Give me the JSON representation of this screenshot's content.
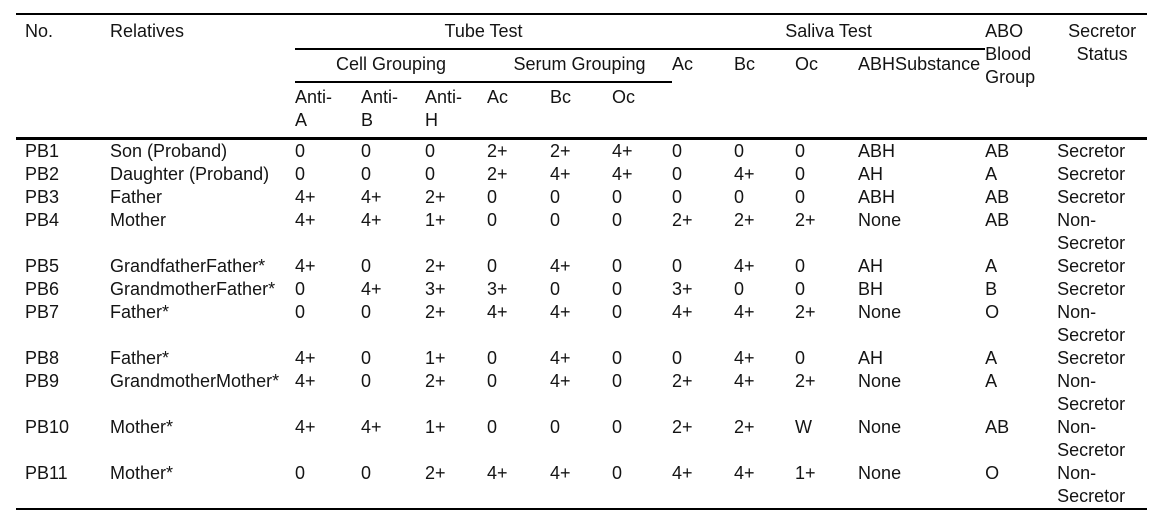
{
  "page": {
    "background_color": "#ffffff",
    "text_color": "#141414",
    "rule_color": "#000000"
  },
  "table": {
    "header": {
      "no": "No.",
      "relatives": "Relatives",
      "tube_test": "Tube Test",
      "saliva_test": "Saliva Test",
      "cell_grouping": "Cell Grouping",
      "serum_grouping": "Serum Grouping",
      "cell_subcols": [
        [
          "Anti-",
          "A"
        ],
        [
          "Anti-",
          "B"
        ],
        [
          "Anti-",
          "H"
        ]
      ],
      "serum_subcols": [
        "Ac",
        "Bc",
        "Oc"
      ],
      "saliva_subcols": [
        "Ac",
        "Bc",
        "Oc",
        "ABHSubstance"
      ],
      "abo_blood_group": "ABO Blood Group",
      "secretor_status": "Secretor Status"
    },
    "rows": [
      {
        "no": "PB1",
        "relatives": "Son (Proband)",
        "anti_a": "0",
        "anti_b": "0",
        "anti_h": "0",
        "serum_ac": "2+",
        "serum_bc": "2+",
        "serum_oc": "4+",
        "saliva_ac": "0",
        "saliva_bc": "0",
        "saliva_oc": "0",
        "abh_substance": "ABH",
        "abo": "AB",
        "secretor": "Secretor"
      },
      {
        "no": "PB2",
        "relatives": "Daughter (Proband)",
        "anti_a": "0",
        "anti_b": "0",
        "anti_h": "0",
        "serum_ac": "2+",
        "serum_bc": "4+",
        "serum_oc": "4+",
        "saliva_ac": "0",
        "saliva_bc": "4+",
        "saliva_oc": "0",
        "abh_substance": "AH",
        "abo": "A",
        "secretor": "Secretor"
      },
      {
        "no": "PB3",
        "relatives": "Father",
        "anti_a": "4+",
        "anti_b": "4+",
        "anti_h": "2+",
        "serum_ac": "0",
        "serum_bc": "0",
        "serum_oc": "0",
        "saliva_ac": "0",
        "saliva_bc": "0",
        "saliva_oc": "0",
        "abh_substance": "ABH",
        "abo": "AB",
        "secretor": "Secretor"
      },
      {
        "no": "PB4",
        "relatives": "Mother",
        "anti_a": "4+",
        "anti_b": "4+",
        "anti_h": "1+",
        "serum_ac": "0",
        "serum_bc": "0",
        "serum_oc": "0",
        "saliva_ac": "2+",
        "saliva_bc": "2+",
        "saliva_oc": "2+",
        "abh_substance": "None",
        "abo": "AB",
        "secretor": "Non-Secretor"
      },
      {
        "no": "PB5",
        "relatives": "GrandfatherFather*",
        "anti_a": "4+",
        "anti_b": "0",
        "anti_h": "2+",
        "serum_ac": "0",
        "serum_bc": "4+",
        "serum_oc": "0",
        "saliva_ac": "0",
        "saliva_bc": "4+",
        "saliva_oc": "0",
        "abh_substance": "AH",
        "abo": "A",
        "secretor": "Secretor"
      },
      {
        "no": "PB6",
        "relatives": "GrandmotherFather*",
        "anti_a": "0",
        "anti_b": "4+",
        "anti_h": "3+",
        "serum_ac": "3+",
        "serum_bc": "0",
        "serum_oc": "0",
        "saliva_ac": "3+",
        "saliva_bc": "0",
        "saliva_oc": "0",
        "abh_substance": "BH",
        "abo": "B",
        "secretor": "Secretor"
      },
      {
        "no": "PB7",
        "relatives": "Father*",
        "anti_a": "0",
        "anti_b": "0",
        "anti_h": "2+",
        "serum_ac": "4+",
        "serum_bc": "4+",
        "serum_oc": "0",
        "saliva_ac": "4+",
        "saliva_bc": "4+",
        "saliva_oc": "2+",
        "abh_substance": "None",
        "abo": "O",
        "secretor": "Non-Secretor"
      },
      {
        "no": "PB8",
        "relatives": "Father*",
        "anti_a": "4+",
        "anti_b": "0",
        "anti_h": "1+",
        "serum_ac": "0",
        "serum_bc": "4+",
        "serum_oc": "0",
        "saliva_ac": "0",
        "saliva_bc": "4+",
        "saliva_oc": "0",
        "abh_substance": "AH",
        "abo": "A",
        "secretor": "Secretor"
      },
      {
        "no": "PB9",
        "relatives": "GrandmotherMother*",
        "anti_a": "4+",
        "anti_b": "0",
        "anti_h": "2+",
        "serum_ac": "0",
        "serum_bc": "4+",
        "serum_oc": "0",
        "saliva_ac": "2+",
        "saliva_bc": "4+",
        "saliva_oc": "2+",
        "abh_substance": "None",
        "abo": "A",
        "secretor": "Non-Secretor"
      },
      {
        "no": "PB10",
        "relatives": "Mother*",
        "anti_a": "4+",
        "anti_b": "4+",
        "anti_h": "1+",
        "serum_ac": "0",
        "serum_bc": "0",
        "serum_oc": "0",
        "saliva_ac": "2+",
        "saliva_bc": "2+",
        "saliva_oc": "W",
        "abh_substance": "None",
        "abo": "AB",
        "secretor": "Non-Secretor"
      },
      {
        "no": "PB11",
        "relatives": "Mother*",
        "anti_a": "0",
        "anti_b": "0",
        "anti_h": "2+",
        "serum_ac": "4+",
        "serum_bc": "4+",
        "serum_oc": "0",
        "saliva_ac": "4+",
        "saliva_bc": "4+",
        "saliva_oc": "1+",
        "abh_substance": "None",
        "abo": "O",
        "secretor": "Non-Secretor"
      }
    ]
  }
}
